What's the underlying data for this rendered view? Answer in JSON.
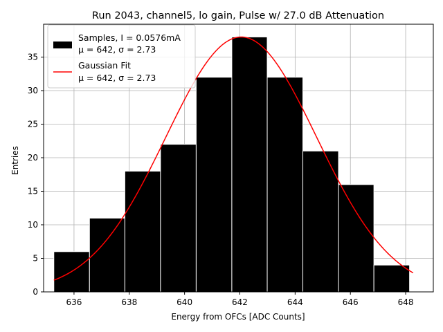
{
  "chart_data": {
    "type": "bar",
    "title": "Run 2043, channel5, lo gain, Pulse w/ 27.0 dB Attenuation",
    "xlabel": "Energy from OFCs [ADC Counts]",
    "ylabel": "Entries",
    "xlim": [
      634.9,
      649.0
    ],
    "ylim": [
      0,
      39.9
    ],
    "xticks": [
      636,
      638,
      640,
      642,
      644,
      646,
      648
    ],
    "yticks": [
      0,
      5,
      10,
      15,
      20,
      25,
      30,
      35
    ],
    "grid": true,
    "legend_position": "upper-left",
    "bin_edges": [
      635.27,
      636.56,
      637.84,
      639.13,
      640.42,
      641.71,
      642.99,
      644.28,
      645.57,
      646.85,
      648.14
    ],
    "values": [
      6,
      11,
      18,
      22,
      32,
      38,
      32,
      21,
      16,
      4
    ],
    "fit": {
      "type": "gaussian",
      "amplitude": 38.0,
      "mu": 642.05,
      "sigma": 2.73,
      "x_range": [
        635.27,
        648.27
      ]
    },
    "series": [
      {
        "name": "Samples, I = 0.0576mA",
        "stats": "μ = 642, σ = 2.73",
        "color": "#000000",
        "kind": "histogram"
      },
      {
        "name": "Gaussian Fit",
        "stats": "μ = 642, σ = 2.73",
        "color": "#ff0000",
        "kind": "line"
      }
    ]
  }
}
